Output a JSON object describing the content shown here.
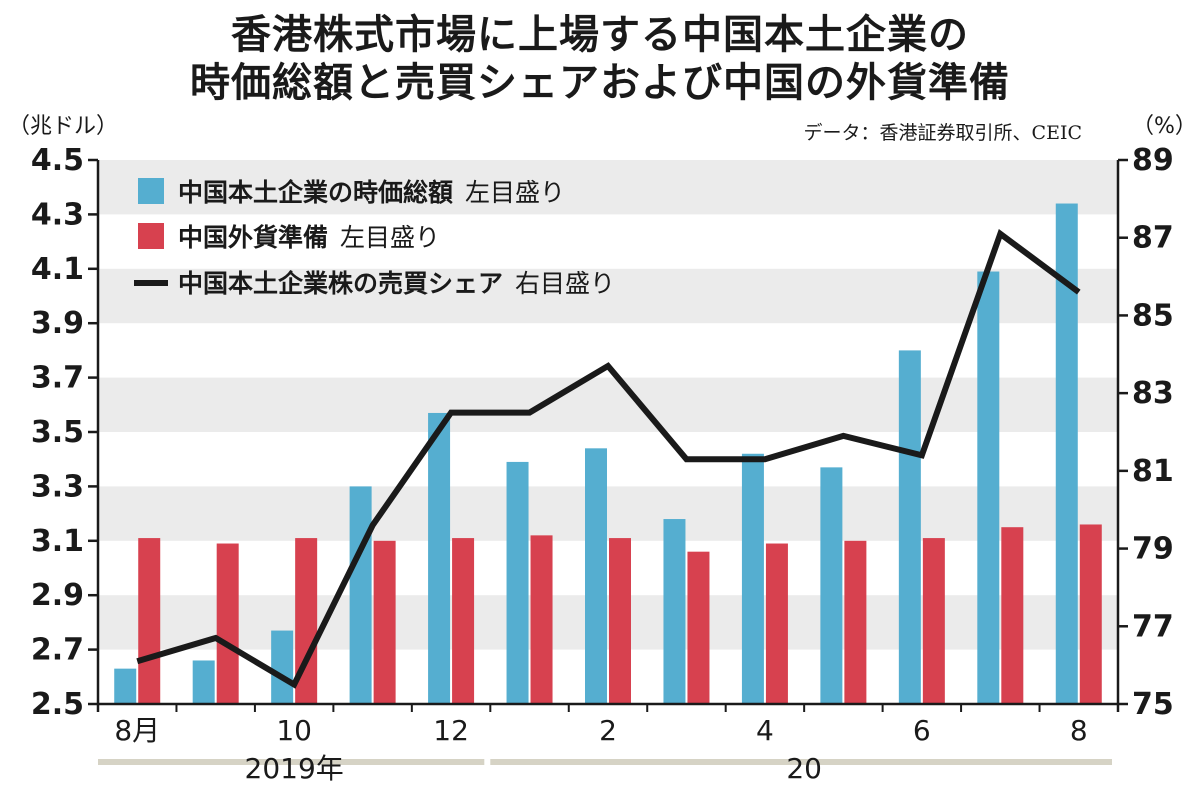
{
  "header": {
    "title_line1": "香港株式市場に上場する中国本土企業の",
    "title_line2": "時価総額と売買シェアおよび中国の外貨準備",
    "left_unit": "（兆ドル）",
    "right_unit": "（%）",
    "source": "データ：香港証券取引所、CEIC"
  },
  "chart_data": {
    "type": "bar",
    "title": "香港株式市場に上場する中国本土企業の時価総額と売買シェアおよび中国の外貨準備",
    "categories": [
      "2019-08",
      "2019-09",
      "2019-10",
      "2019-11",
      "2019-12",
      "2020-01",
      "2020-02",
      "2020-03",
      "2020-04",
      "2020-05",
      "2020-06",
      "2020-07",
      "2020-08"
    ],
    "x_tick_labels": [
      "8月",
      "10",
      "12",
      "2",
      "4",
      "6",
      "8"
    ],
    "x_tick_indices": [
      0,
      2,
      4,
      6,
      8,
      10,
      12
    ],
    "year_labels": [
      {
        "label": "2019年",
        "start": 0,
        "end": 4
      },
      {
        "label": "20",
        "start": 5,
        "end": 12
      }
    ],
    "left_axis": {
      "ylim": [
        2.5,
        4.5
      ],
      "ticks": [
        "2.5",
        "2.7",
        "2.9",
        "3.1",
        "3.3",
        "3.5",
        "3.7",
        "3.9",
        "4.1",
        "4.3",
        "4.5"
      ]
    },
    "right_axis": {
      "ylim": [
        75,
        89
      ],
      "ticks": [
        "75",
        "77",
        "79",
        "81",
        "83",
        "85",
        "87",
        "89"
      ]
    },
    "grid": "horizontal bands",
    "legend_position": "top-left",
    "series": [
      {
        "name": "中国本土企業の時価総額",
        "axis_note": "左目盛り",
        "type": "bar",
        "axis": "left",
        "color": "#55aed0",
        "values": [
          2.63,
          2.66,
          2.77,
          3.3,
          3.57,
          3.39,
          3.44,
          3.18,
          3.42,
          3.37,
          3.8,
          4.09,
          4.34
        ]
      },
      {
        "name": "中国外貨準備",
        "axis_note": "左目盛り",
        "type": "bar",
        "axis": "left",
        "color": "#d7414f",
        "values": [
          3.11,
          3.09,
          3.11,
          3.1,
          3.11,
          3.12,
          3.11,
          3.06,
          3.09,
          3.1,
          3.11,
          3.15,
          3.16
        ]
      },
      {
        "name": "中国本土企業株の売買シェア",
        "axis_note": "右目盛り",
        "type": "line",
        "axis": "right",
        "color": "#1a1a1a",
        "values": [
          76.1,
          76.7,
          75.5,
          79.6,
          82.5,
          82.5,
          83.7,
          81.3,
          81.3,
          81.9,
          81.4,
          87.1,
          85.6
        ]
      }
    ]
  }
}
